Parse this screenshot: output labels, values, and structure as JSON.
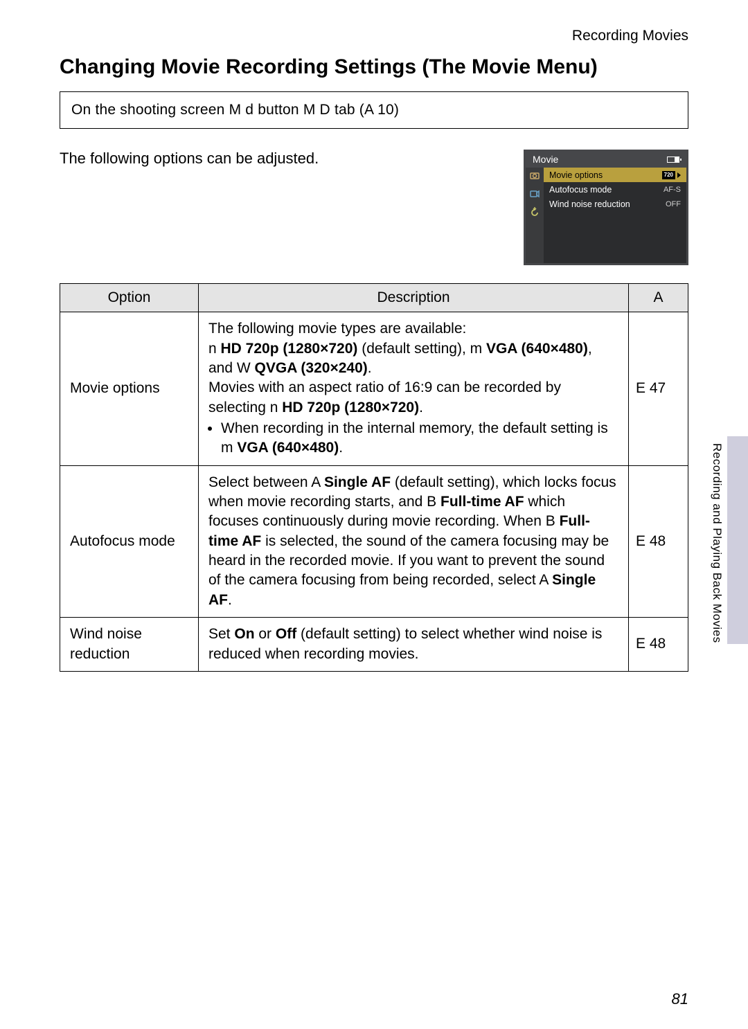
{
  "header": {
    "chapter": "Recording Movies",
    "title": "Changing Movie Recording Settings (The Movie Menu)"
  },
  "breadcrumb": "On the shooting screen M d      button M D  tab (A   10)",
  "intro": "The following options can be adjusted.",
  "camera_menu": {
    "title": "Movie",
    "tab_colors": [
      "#caa96a",
      "#6aa3c9",
      "#c9c86a"
    ],
    "rows": [
      {
        "label": "Movie options",
        "value_icon": "720",
        "selected": true
      },
      {
        "label": "Autofocus mode",
        "value": "AF-S",
        "selected": false
      },
      {
        "label": "Wind noise reduction",
        "value": "OFF",
        "selected": false
      }
    ],
    "colors": {
      "frame": "#46474a",
      "body": "#2b2c2e",
      "tabs_bg": "#3a3b3d",
      "selected_bg": "#b9a03e"
    }
  },
  "table": {
    "headers": {
      "option": "Option",
      "description": "Description",
      "ref": "A"
    },
    "rows": [
      {
        "option": "Movie options",
        "ref": "E   47",
        "desc": {
          "line1": "The following movie types are available:",
          "p": "n    <span class='b'>HD 720p (1280×720)</span> (default setting), m   <span class='b'>VGA (640×480)</span>, and W   <span class='b'>QVGA (320×240)</span>.",
          "p2": "Movies with an aspect ratio of 16:9 can be recorded by selecting n    <span class='b'>HD 720p (1280×720)</span>.",
          "bullet": "When recording in the internal memory, the default setting is m   <span class='b'>VGA (640×480)</span>."
        }
      },
      {
        "option": "Autofocus mode",
        "ref": "E   48",
        "desc_html": "Select between A      <span class='b'>Single AF</span> (default setting), which locks focus when movie recording starts, and B      <span class='b'>Full-time AF</span> which focuses continuously during movie recording. When B      <span class='b'>Full-time AF</span> is selected, the sound of the camera focusing may be heard in the recorded movie. If you want to prevent the sound of the camera focusing from being recorded, select A    <span class='b'>Single AF</span>."
      },
      {
        "option": "Wind noise reduction",
        "ref": "E   48",
        "desc_html": "Set <span class='b'>On</span> or <span class='b'>Off</span> (default setting) to select whether wind noise is reduced when recording movies."
      }
    ]
  },
  "side": {
    "label": "Recording and Playing Back Movies",
    "tab_color": "#cfcedd"
  },
  "page_number": "81"
}
